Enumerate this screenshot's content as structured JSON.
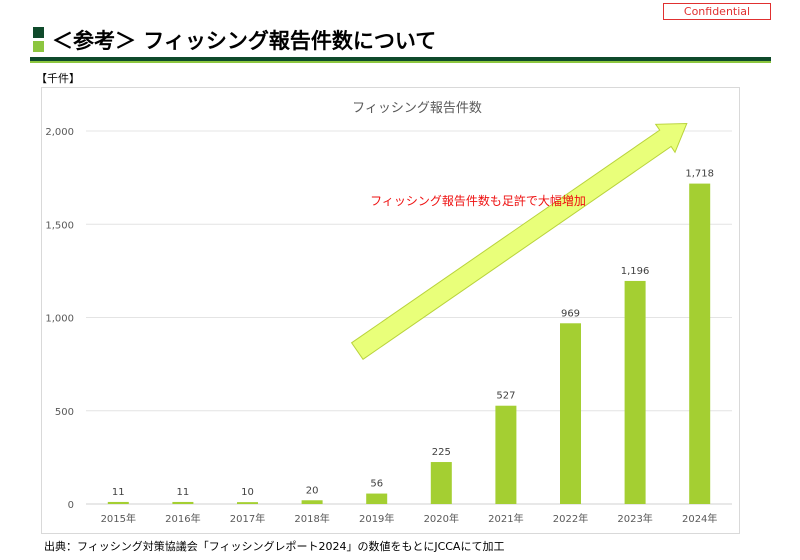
{
  "confidential_label": "Confidential",
  "heading": "＜参考＞ フィッシング報告件数について",
  "unit_label": "【千件】",
  "source_note": "出典：フィッシング対策協議会「フィッシングレポート2024」の数値をもとにJCCAにて加工",
  "colors": {
    "bar": "#a4cf32",
    "arrow": "#e9ff7a",
    "arrow_stroke": "#b9d33c",
    "annotation": "#ee1111",
    "heading_dark": "#0f4a2b",
    "heading_light": "#8cc63f"
  },
  "chart_data": {
    "type": "bar",
    "title": "フィッシング報告件数",
    "categories": [
      "2015年",
      "2016年",
      "2017年",
      "2018年",
      "2019年",
      "2020年",
      "2021年",
      "2022年",
      "2023年",
      "2024年"
    ],
    "values": [
      11,
      11,
      10,
      20,
      56,
      225,
      527,
      969,
      1196,
      1718
    ],
    "data_labels": [
      "11",
      "11",
      "10",
      "20",
      "56",
      "225",
      "527",
      "969",
      "1,196",
      "1,718"
    ],
    "yticks": [
      0,
      500,
      1000,
      1500,
      2000
    ],
    "ytick_labels": [
      "0",
      "500",
      "1,000",
      "1,500",
      "2,000"
    ],
    "ylim": [
      0,
      2000
    ],
    "xlabel": "",
    "ylabel": "【千件】",
    "grid": true,
    "annotation": {
      "text": "フィッシング報告件数も足許で大幅増加",
      "arrow_from": {
        "category_index": 4.2,
        "value": 820
      },
      "arrow_to": {
        "category_index": 9.3,
        "value": 2040
      }
    }
  }
}
